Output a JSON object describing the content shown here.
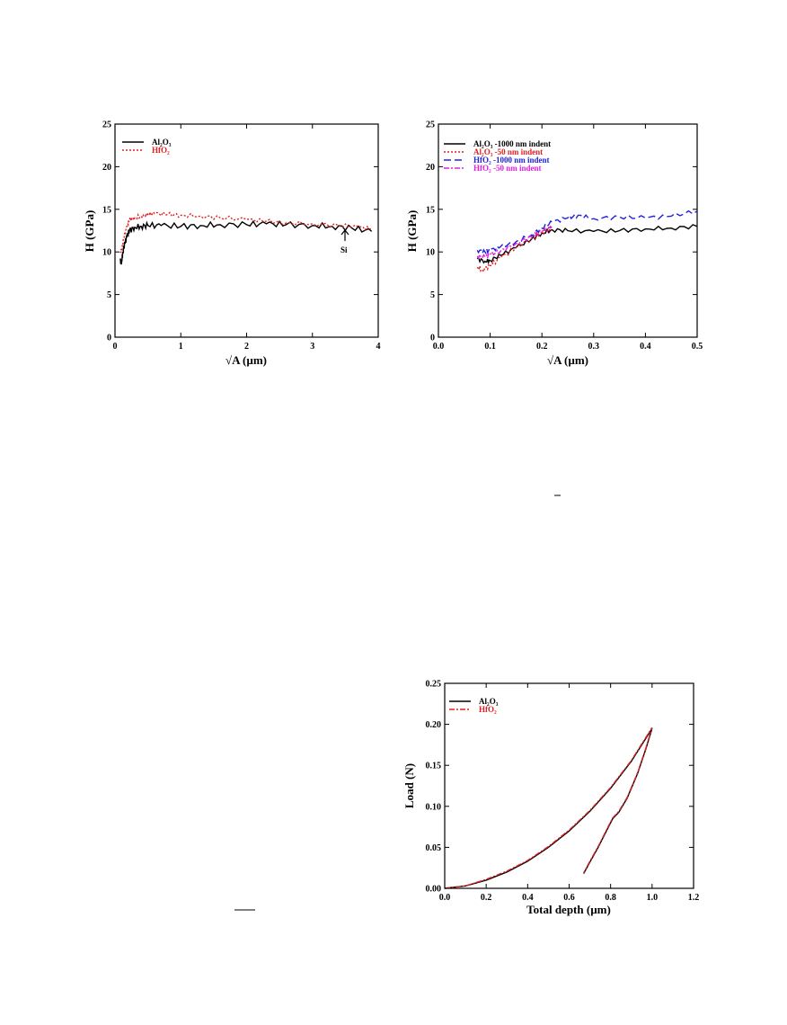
{
  "chart_data": [
    {
      "type": "line",
      "xlabel": "√A (µm)",
      "ylabel": "H (GPa)",
      "xlim": [
        0,
        4
      ],
      "ylim": [
        0,
        25
      ],
      "xticks": [
        "0",
        "1",
        "2",
        "3",
        "4"
      ],
      "yticks": [
        "0",
        "5",
        "10",
        "15",
        "20",
        "25"
      ],
      "legend_position": "top-left",
      "annotations": [
        {
          "text": "Si",
          "x": 3.5,
          "y": 12.2
        }
      ],
      "series": [
        {
          "name": "Al2O3",
          "legend_label": "Al₂O₃",
          "color": "#000000",
          "dash": "solid",
          "jitter": 0.35,
          "x": [
            0.08,
            0.1,
            0.12,
            0.15,
            0.18,
            0.22,
            0.3,
            0.4,
            0.5,
            0.7,
            1.0,
            1.3,
            1.6,
            2.0,
            2.3,
            2.6,
            3.0,
            3.3,
            3.6,
            3.9
          ],
          "y": [
            9.0,
            8.8,
            10.0,
            11.0,
            11.8,
            12.5,
            12.9,
            13.0,
            13.1,
            13.1,
            13.0,
            13.1,
            13.2,
            13.2,
            13.3,
            13.2,
            13.1,
            13.0,
            12.8,
            12.4
          ]
        },
        {
          "name": "HfO2",
          "legend_label": "HfO₂",
          "color": "#e02020",
          "dash": "2,2",
          "jitter": 0.25,
          "x": [
            0.08,
            0.1,
            0.13,
            0.18,
            0.22,
            0.3,
            0.4,
            0.5,
            0.6,
            0.8,
            1.0,
            1.3,
            1.6,
            2.0,
            2.3,
            2.6,
            3.0,
            3.4,
            3.7,
            3.9
          ],
          "y": [
            10.0,
            10.2,
            11.5,
            13.0,
            13.8,
            14.0,
            14.2,
            14.4,
            14.5,
            14.4,
            14.3,
            14.2,
            14.0,
            13.8,
            13.6,
            13.4,
            13.3,
            13.1,
            12.9,
            12.7
          ]
        }
      ]
    },
    {
      "type": "line",
      "xlabel": "√A (µm)",
      "ylabel": "H (GPa)",
      "xlim": [
        0,
        0.5
      ],
      "ylim": [
        0,
        25
      ],
      "xticks": [
        "0.0",
        "0.1",
        "0.2",
        "0.3",
        "0.4",
        "0.5"
      ],
      "yticks": [
        "0",
        "5",
        "10",
        "15",
        "20",
        "25"
      ],
      "legend_position": "top-left",
      "series": [
        {
          "name": "Al2O3 -1000 nm indent",
          "legend_label": "Al₂O₃ -1000 nm indent",
          "color": "#000000",
          "dash": "solid",
          "jitter": 0.25,
          "x": [
            0.075,
            0.09,
            0.1,
            0.12,
            0.15,
            0.18,
            0.2,
            0.22,
            0.25,
            0.3,
            0.35,
            0.4,
            0.45,
            0.5
          ],
          "y": [
            9.2,
            8.9,
            9.0,
            9.6,
            10.5,
            11.5,
            12.2,
            12.6,
            12.5,
            12.4,
            12.5,
            12.7,
            12.8,
            13.0
          ]
        },
        {
          "name": "Al2O3 -50 nm indent",
          "legend_label": "Al₂O₃ -50 nm indent",
          "color": "#e02020",
          "dash": "2,2",
          "jitter": 0.3,
          "x": [
            0.075,
            0.085,
            0.1,
            0.12,
            0.15,
            0.18,
            0.2,
            0.22
          ],
          "y": [
            8.2,
            7.9,
            8.4,
            9.3,
            10.5,
            11.6,
            12.3,
            12.8
          ]
        },
        {
          "name": "HfO2 -1000 nm indent",
          "legend_label": "HfO₂ -1000 nm indent",
          "color": "#2020e0",
          "dash": "8,4",
          "jitter": 0.25,
          "x": [
            0.075,
            0.09,
            0.1,
            0.12,
            0.15,
            0.18,
            0.2,
            0.22,
            0.25,
            0.27,
            0.3,
            0.35,
            0.4,
            0.45,
            0.5
          ],
          "y": [
            10.2,
            10.0,
            10.2,
            10.6,
            11.2,
            12.0,
            12.8,
            13.5,
            14.0,
            14.3,
            13.9,
            14.1,
            14.0,
            14.2,
            14.8
          ]
        },
        {
          "name": "HfO2 -50 nm indent",
          "legend_label": "HfO₂ -50 nm indent",
          "color": "#e020e0",
          "dash": "6,2,2,2",
          "jitter": 0.25,
          "x": [
            0.075,
            0.09,
            0.1,
            0.12,
            0.15,
            0.18,
            0.2,
            0.22
          ],
          "y": [
            9.5,
            9.4,
            9.7,
            10.1,
            11.0,
            11.8,
            12.4,
            12.9
          ]
        }
      ]
    },
    {
      "type": "line",
      "xlabel": "Total depth (µm)",
      "ylabel": "Load (N)",
      "xlim": [
        0,
        1.2
      ],
      "ylim": [
        0,
        0.25
      ],
      "xticks": [
        "0.0",
        "0.2",
        "0.4",
        "0.6",
        "0.8",
        "1.0",
        "1.2"
      ],
      "yticks": [
        "0.00",
        "0.05",
        "0.10",
        "0.15",
        "0.20",
        "0.25"
      ],
      "legend_position": "top-left",
      "series": [
        {
          "name": "Al2O3",
          "legend_label": "Al₂O₃",
          "color": "#000000",
          "dash": "solid",
          "jitter": 0,
          "x": [
            0.0,
            0.1,
            0.2,
            0.3,
            0.4,
            0.5,
            0.6,
            0.7,
            0.8,
            0.9,
            1.0,
            0.97,
            0.93,
            0.88,
            0.84,
            0.81,
            0.78,
            0.74,
            0.7,
            0.67
          ],
          "y": [
            0.0,
            0.003,
            0.01,
            0.02,
            0.033,
            0.05,
            0.07,
            0.094,
            0.122,
            0.155,
            0.195,
            0.17,
            0.14,
            0.11,
            0.093,
            0.085,
            0.07,
            0.05,
            0.032,
            0.018
          ]
        },
        {
          "name": "HfO2",
          "legend_label": "HfO₂",
          "color": "#e02020",
          "dash": "6,2,2,2",
          "jitter": 0,
          "x": [
            0.0,
            0.1,
            0.2,
            0.3,
            0.4,
            0.5,
            0.6,
            0.7,
            0.8,
            0.9,
            1.0,
            0.97,
            0.93,
            0.88,
            0.84,
            0.81,
            0.78,
            0.74,
            0.7,
            0.67
          ],
          "y": [
            0.0,
            0.003,
            0.011,
            0.021,
            0.034,
            0.051,
            0.071,
            0.095,
            0.123,
            0.156,
            0.196,
            0.171,
            0.141,
            0.111,
            0.094,
            0.086,
            0.071,
            0.051,
            0.033,
            0.019
          ]
        }
      ]
    }
  ]
}
